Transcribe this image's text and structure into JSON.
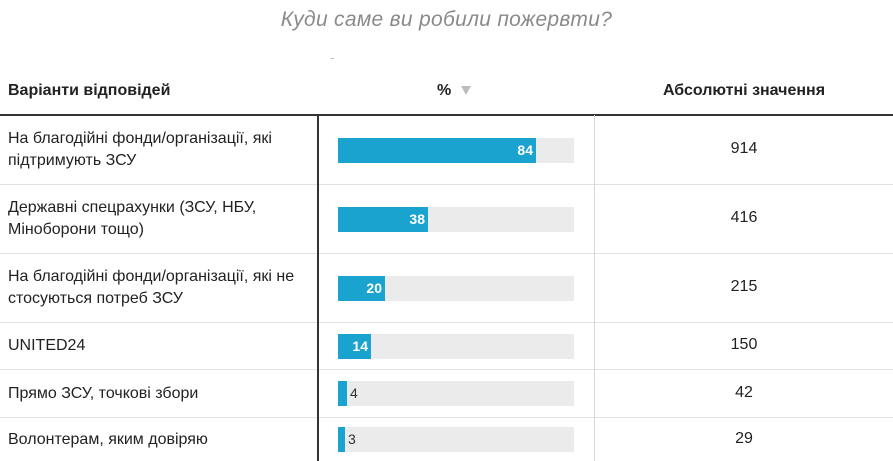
{
  "title": "Куди саме ви робили пожервти?",
  "header": {
    "col_options": "Варіанти відповідей",
    "col_percent": "%",
    "col_absolute": "Абсолютні значення"
  },
  "colors": {
    "bar": "#1aa3cf",
    "track": "#ebebeb"
  },
  "chart_data": {
    "type": "table",
    "title": "Куди саме ви робили пожервти?",
    "columns": [
      "Варіанти відповідей",
      "%",
      "Абсолютні значення"
    ],
    "sorted_by": "%",
    "sort_direction": "descending",
    "percent_scale_max": 100,
    "rows": [
      {
        "label": "На благодійні фонди/організації, які підтримують ЗСУ",
        "percent": 84,
        "absolute": 914
      },
      {
        "label": "Державні спецрахунки (ЗСУ, НБУ, Міноборони тощо)",
        "percent": 38,
        "absolute": 416
      },
      {
        "label": "На благодійні фонди/організації, які не стосуються потреб ЗСУ",
        "percent": 20,
        "absolute": 215
      },
      {
        "label": "UNITED24",
        "percent": 14,
        "absolute": 150
      },
      {
        "label": "Прямо ЗСУ, точкові збори",
        "percent": 4,
        "absolute": 42
      },
      {
        "label": "Волонтерам, яким довіряю",
        "percent": 3,
        "absolute": 29
      }
    ]
  }
}
